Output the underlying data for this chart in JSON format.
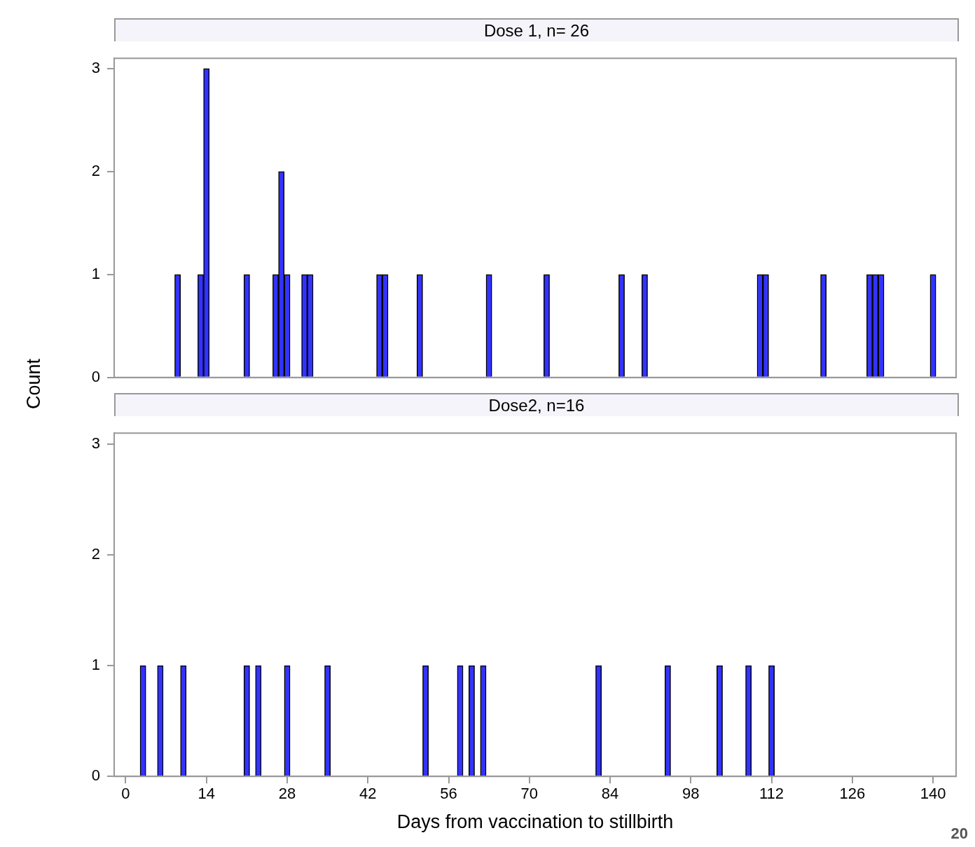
{
  "chart_data": [
    {
      "type": "bar",
      "title": "Dose 1, n= 26",
      "ylabel": "Count",
      "xlim": [
        -2,
        144
      ],
      "xticks": [
        0,
        14,
        28,
        42,
        56,
        70,
        84,
        98,
        112,
        126,
        140
      ],
      "ylim": [
        0,
        3.1
      ],
      "yticks": [
        0,
        1,
        2,
        3
      ],
      "tick_labels": "y",
      "series": [
        {
          "color": "#3333ff",
          "x": [
            9,
            13,
            14,
            21,
            26,
            27,
            28,
            31,
            32,
            44,
            45,
            51,
            63,
            73,
            86,
            90,
            110,
            111,
            121,
            129,
            130,
            131,
            140
          ],
          "values": [
            1,
            1,
            3,
            1,
            1,
            2,
            1,
            1,
            1,
            1,
            1,
            1,
            1,
            1,
            1,
            1,
            1,
            1,
            1,
            1,
            1,
            1,
            1
          ]
        }
      ]
    },
    {
      "type": "bar",
      "title": "Dose2, n=16",
      "xlabel": "Days from vaccination to stillbirth",
      "xlim": [
        -2,
        144
      ],
      "xticks": [
        0,
        14,
        28,
        42,
        56,
        70,
        84,
        98,
        112,
        126,
        140
      ],
      "ylim": [
        0,
        3.1
      ],
      "yticks": [
        0,
        1,
        2,
        3
      ],
      "annotations": [
        "20"
      ],
      "series": [
        {
          "color": "#3333ff",
          "x": [
            3,
            6,
            10,
            21,
            23,
            28,
            35,
            52,
            58,
            60,
            62,
            82,
            94,
            103,
            108,
            112
          ],
          "values": [
            1,
            1,
            1,
            1,
            1,
            1,
            1,
            1,
            1,
            1,
            1,
            1,
            1,
            1,
            1,
            1
          ]
        }
      ]
    }
  ]
}
